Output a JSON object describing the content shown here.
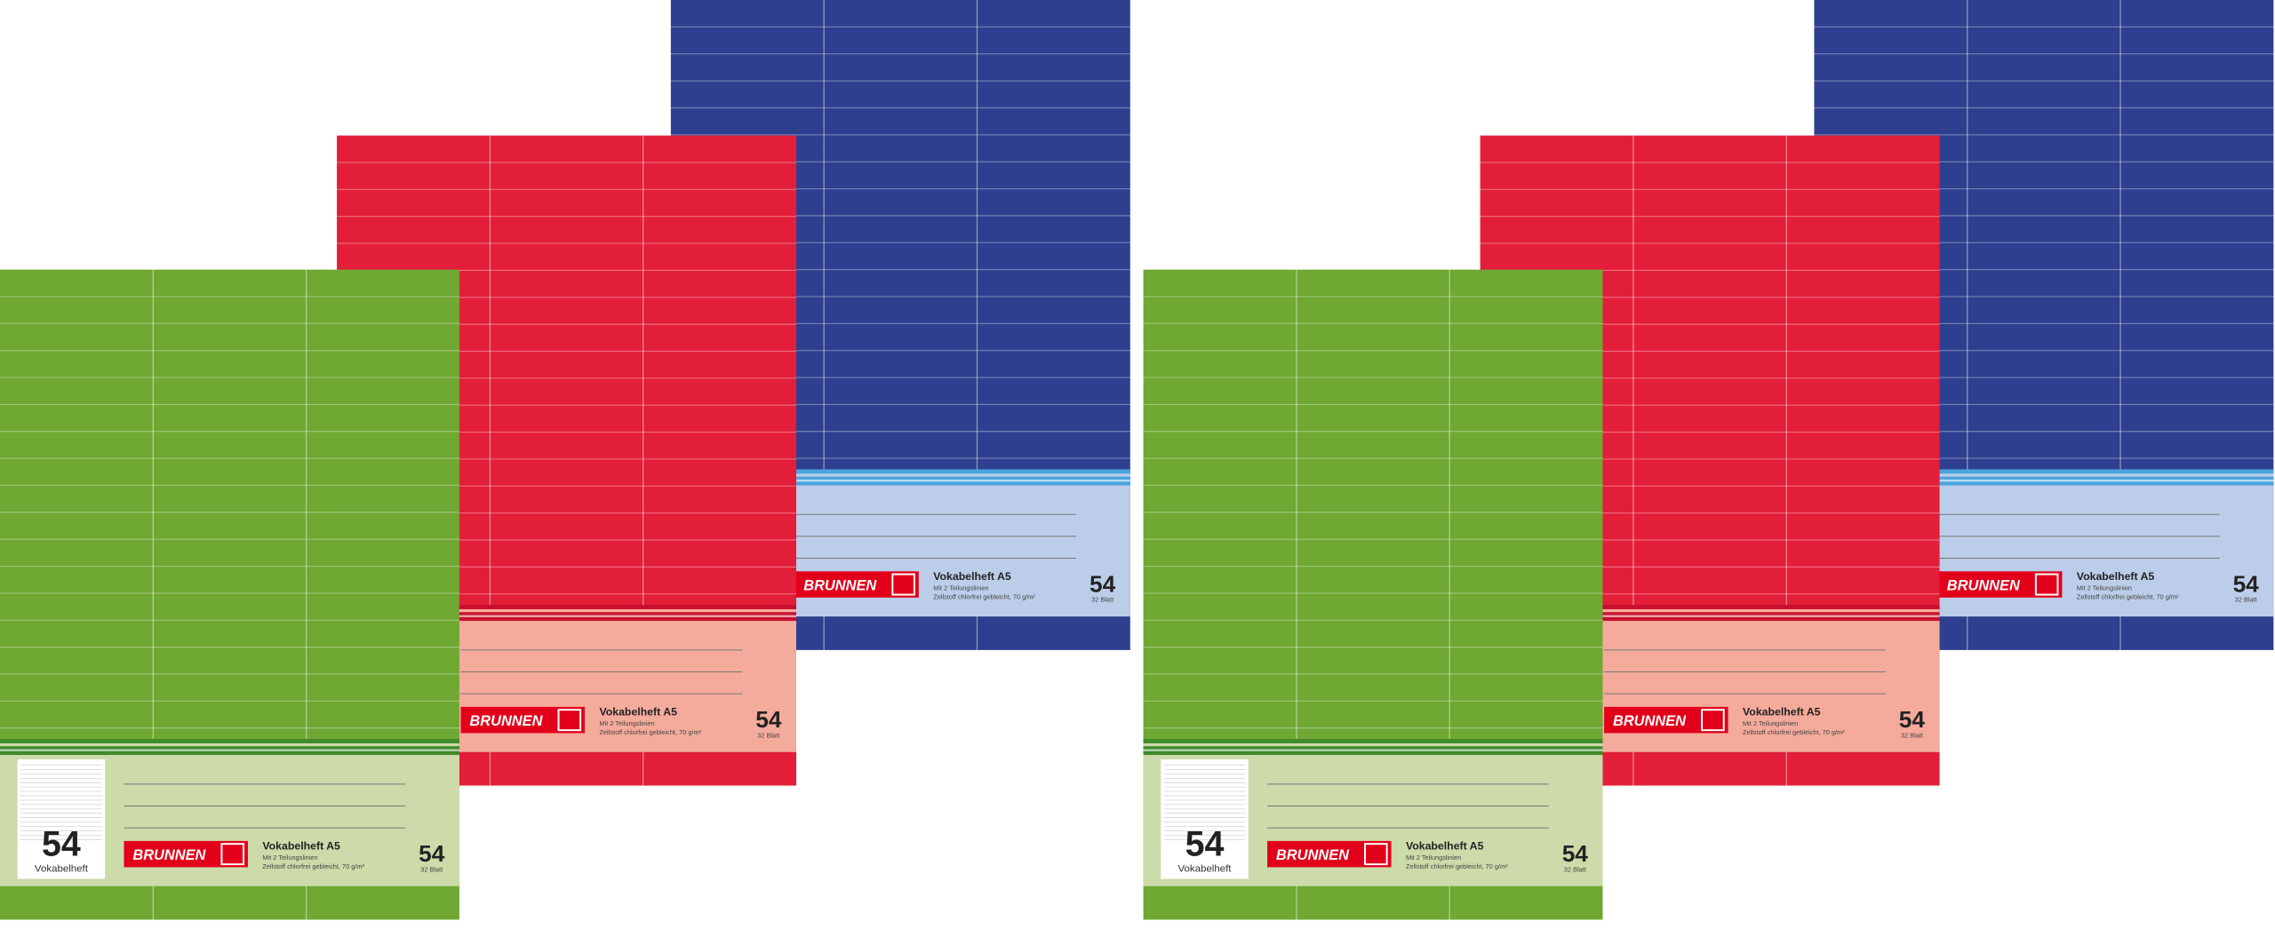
{
  "product": {
    "brand": "BRUNNEN",
    "title": "Vokabelheft A5",
    "subtitle": "Mit 2 Teilungslinien",
    "paper": "Zellstoff chlorfrei gebleicht, 70 g/m²",
    "number": "54",
    "sheets": "32 Blatt",
    "label_name": "Vokabelheft"
  },
  "notebooks": [
    {
      "color": "#2e3f8f",
      "label_color": "#bccde9",
      "stripe_color": "#4aa3df"
    },
    {
      "color": "#e31e38",
      "label_color": "#f4ab9c",
      "stripe_color": "#c8102e"
    },
    {
      "color": "#6fa832",
      "label_color": "#cddaa9",
      "stripe_color": "#3f8a2a"
    }
  ]
}
